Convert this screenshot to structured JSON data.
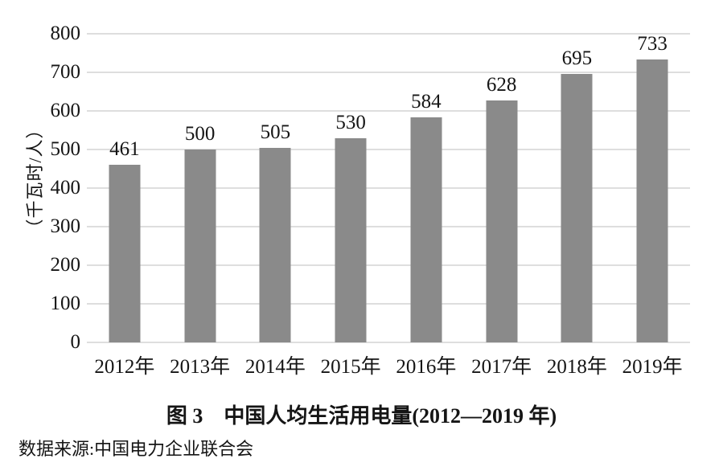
{
  "figure": {
    "caption": "图 3　中国人均生活用电量(2012—2019 年)",
    "source_note": "数据来源:中国电力企业联合会"
  },
  "colors": {
    "bar": "#8a8a8a",
    "gridline": "#dedede",
    "text": "#151515",
    "background": "#ffffff"
  },
  "chart_data": {
    "type": "bar",
    "categories": [
      "2012年",
      "2013年",
      "2014年",
      "2015年",
      "2016年",
      "2017年",
      "2018年",
      "2019年"
    ],
    "values": [
      461,
      500,
      505,
      530,
      584,
      628,
      695,
      733
    ],
    "title": "图 3　中国人均生活用电量(2012—2019 年)",
    "xlabel": "",
    "ylabel": "（千瓦时/人）",
    "ylim": [
      0,
      800
    ],
    "ytick_step": 100,
    "yticks": [
      0,
      100,
      200,
      300,
      400,
      500,
      600,
      700,
      800
    ],
    "grid": true,
    "legend": "none",
    "value_labels_shown": true,
    "source": "数据来源:中国电力企业联合会"
  }
}
